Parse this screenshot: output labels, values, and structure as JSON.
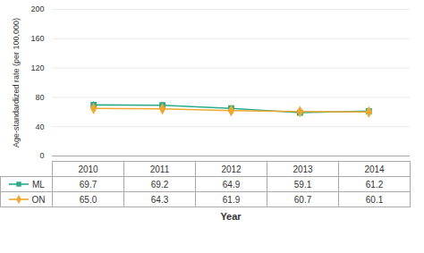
{
  "chart_data": {
    "type": "line",
    "xlabel": "Year",
    "ylabel": "Age-standardized rate (per 100,000)",
    "x": [
      2010,
      2011,
      2012,
      2013,
      2014
    ],
    "xlim": [
      2009.4,
      2014.6
    ],
    "xticks": [
      2010,
      2011,
      2012,
      2013,
      2014
    ],
    "ylim": [
      0,
      200
    ],
    "yticks": [
      0,
      40,
      80,
      120,
      160,
      200
    ],
    "grid": true,
    "legend": "bottom",
    "tick_labels": "y",
    "series": [
      {
        "name": "ML",
        "color": "#2aab8c",
        "marker": "square",
        "values": [
          69.7,
          69.2,
          64.9,
          59.1,
          61.2
        ],
        "errors": [
          4.5,
          4.2,
          3.8,
          4.5,
          4.2
        ],
        "value_labels": [
          "69.7",
          "69.2",
          "64.9",
          "59.1",
          "61.2"
        ]
      },
      {
        "name": "ON",
        "color": "#f0a830",
        "marker": "diamond",
        "values": [
          65.0,
          64.3,
          61.9,
          60.7,
          60.1
        ],
        "errors": [
          1.2,
          1.2,
          1.2,
          1.2,
          1.2
        ],
        "value_labels": [
          "65.0",
          "64.3",
          "61.9",
          "60.7",
          "60.1"
        ]
      }
    ]
  }
}
